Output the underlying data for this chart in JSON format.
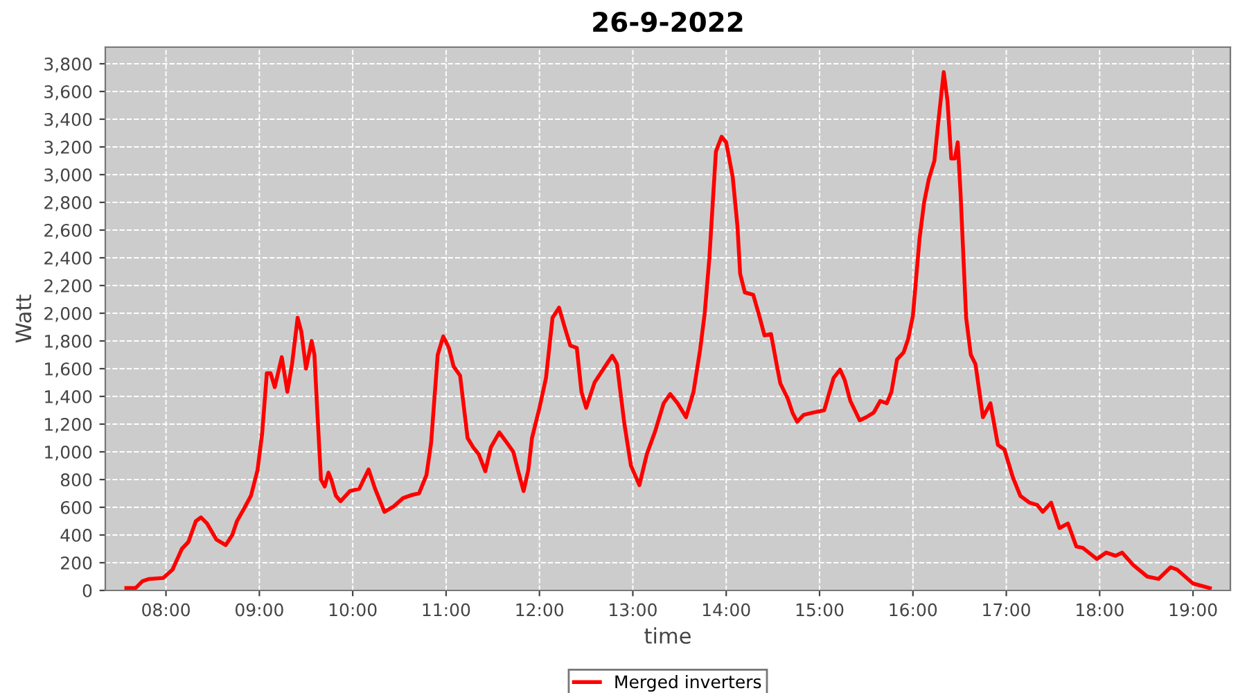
{
  "chart_data": {
    "type": "line",
    "title": "26-9-2022",
    "xlabel": "time",
    "ylabel": "Watt",
    "x": [
      7.575,
      7.674,
      7.748,
      7.82,
      7.97,
      8.07,
      8.17,
      8.24,
      8.32,
      8.375,
      8.44,
      8.54,
      8.64,
      8.71,
      8.76,
      8.83,
      8.91,
      8.98,
      9.03,
      9.08,
      9.12,
      9.165,
      9.24,
      9.3,
      9.35,
      9.41,
      9.45,
      9.5,
      9.56,
      9.59,
      9.62,
      9.66,
      9.7,
      9.74,
      9.77,
      9.82,
      9.87,
      9.97,
      10.07,
      10.17,
      10.24,
      10.34,
      10.44,
      10.54,
      10.64,
      10.71,
      10.79,
      10.84,
      10.91,
      10.97,
      11.03,
      11.08,
      11.15,
      11.23,
      11.29,
      11.35,
      11.42,
      11.48,
      11.57,
      11.65,
      11.72,
      11.77,
      11.83,
      11.88,
      11.92,
      12.0,
      12.07,
      12.14,
      12.21,
      12.27,
      12.33,
      12.4,
      12.45,
      12.5,
      12.59,
      12.66,
      12.72,
      12.78,
      12.83,
      12.91,
      12.98,
      13.07,
      13.15,
      13.24,
      13.33,
      13.4,
      13.48,
      13.57,
      13.65,
      13.72,
      13.77,
      13.82,
      13.89,
      13.95,
      14.0,
      14.07,
      14.12,
      14.15,
      14.2,
      14.29,
      14.36,
      14.41,
      14.48,
      14.54,
      14.58,
      14.66,
      14.71,
      14.76,
      14.83,
      14.93,
      15.05,
      15.15,
      15.22,
      15.27,
      15.33,
      15.43,
      15.5,
      15.58,
      15.65,
      15.72,
      15.77,
      15.83,
      15.9,
      15.95,
      16.0,
      16.07,
      16.12,
      16.17,
      16.23,
      16.27,
      16.33,
      16.37,
      16.41,
      16.45,
      16.48,
      16.51,
      16.57,
      16.62,
      16.67,
      16.75,
      16.83,
      16.91,
      16.98,
      17.07,
      17.15,
      17.25,
      17.33,
      17.39,
      17.48,
      17.57,
      17.66,
      17.75,
      17.82,
      17.97,
      18.07,
      18.17,
      18.24,
      18.36,
      18.51,
      18.63,
      18.76,
      18.83,
      19.0,
      19.18
    ],
    "series": [
      {
        "name": "Merged inverters",
        "color": "#ff0000",
        "values": [
          17,
          17,
          67,
          83,
          90,
          150,
          300,
          350,
          500,
          527,
          483,
          367,
          327,
          400,
          500,
          583,
          683,
          867,
          1133,
          1567,
          1567,
          1467,
          1683,
          1433,
          1633,
          1967,
          1867,
          1600,
          1800,
          1700,
          1300,
          800,
          750,
          850,
          800,
          683,
          643,
          717,
          733,
          873,
          733,
          567,
          607,
          667,
          690,
          700,
          833,
          1067,
          1700,
          1833,
          1750,
          1617,
          1550,
          1100,
          1033,
          983,
          860,
          1033,
          1140,
          1067,
          1000,
          867,
          717,
          867,
          1100,
          1317,
          1533,
          1967,
          2040,
          1900,
          1767,
          1750,
          1433,
          1317,
          1500,
          1573,
          1633,
          1693,
          1633,
          1200,
          900,
          760,
          983,
          1150,
          1350,
          1417,
          1350,
          1250,
          1433,
          1733,
          2000,
          2400,
          3167,
          3273,
          3233,
          2983,
          2633,
          2283,
          2150,
          2133,
          1967,
          1840,
          1850,
          1633,
          1493,
          1383,
          1283,
          1217,
          1267,
          1283,
          1300,
          1533,
          1593,
          1517,
          1367,
          1227,
          1250,
          1283,
          1367,
          1350,
          1433,
          1667,
          1717,
          1817,
          1983,
          2533,
          2800,
          2967,
          3100,
          3367,
          3740,
          3533,
          3117,
          3117,
          3233,
          2867,
          1967,
          1700,
          1633,
          1250,
          1350,
          1050,
          1017,
          817,
          683,
          633,
          617,
          567,
          633,
          450,
          483,
          317,
          307,
          227,
          273,
          250,
          273,
          183,
          100,
          83,
          167,
          150,
          50,
          17
        ]
      }
    ],
    "xlim": [
      7.35,
      19.4
    ],
    "ylim": [
      0,
      3920
    ],
    "xticks": [
      {
        "value": 8,
        "label": "08:00"
      },
      {
        "value": 9,
        "label": "09:00"
      },
      {
        "value": 10,
        "label": "10:00"
      },
      {
        "value": 11,
        "label": "11:00"
      },
      {
        "value": 12,
        "label": "12:00"
      },
      {
        "value": 13,
        "label": "13:00"
      },
      {
        "value": 14,
        "label": "14:00"
      },
      {
        "value": 15,
        "label": "15:00"
      },
      {
        "value": 16,
        "label": "16:00"
      },
      {
        "value": 17,
        "label": "17:00"
      },
      {
        "value": 18,
        "label": "18:00"
      },
      {
        "value": 19,
        "label": "19:00"
      }
    ],
    "yticks": [
      0,
      200,
      400,
      600,
      800,
      {
        "value": 1000,
        "label": "1,000"
      },
      {
        "value": 1200,
        "label": "1,200"
      },
      {
        "value": 1400,
        "label": "1,400"
      },
      {
        "value": 1600,
        "label": "1,600"
      },
      {
        "value": 1800,
        "label": "1,800"
      },
      {
        "value": 2000,
        "label": "2,000"
      },
      {
        "value": 2200,
        "label": "2,200"
      },
      {
        "value": 2400,
        "label": "2,400"
      },
      {
        "value": 2600,
        "label": "2,600"
      },
      {
        "value": 2800,
        "label": "2,800"
      },
      {
        "value": 3000,
        "label": "3,000"
      },
      {
        "value": 3200,
        "label": "3,200"
      },
      {
        "value": 3400,
        "label": "3,400"
      },
      {
        "value": 3600,
        "label": "3,600"
      },
      {
        "value": 3800,
        "label": "3,800"
      }
    ],
    "grid": true,
    "legend": "bottom",
    "marker": "none",
    "line_style": "solid"
  }
}
